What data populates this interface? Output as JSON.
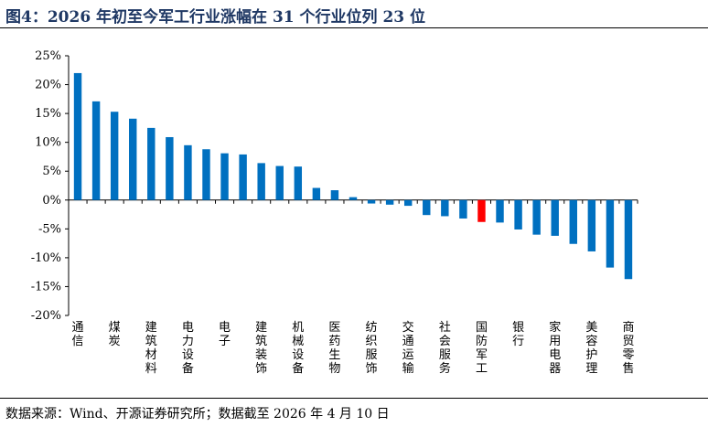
{
  "title": "图4：2026 年初至今军工行业涨幅在 31 个行业位列 23 位",
  "source": "数据来源：Wind、开源证券研究所；数据截至 2026 年 4 月 10 日",
  "colors": {
    "bar": "#0070c0",
    "highlight": "#ff0000",
    "title": "#1f3864"
  },
  "chart_data": {
    "type": "bar",
    "ylim": [
      -20,
      25
    ],
    "yticks": [
      25,
      20,
      15,
      10,
      5,
      0,
      -5,
      -10,
      -15,
      -20
    ],
    "ytick_labels": [
      "25%",
      "20%",
      "15%",
      "10%",
      "5%",
      "0%",
      "-5%",
      "-10%",
      "-15%",
      "-20%"
    ],
    "categories": [
      "通信",
      "",
      "煤炭",
      "",
      "建筑材料",
      "",
      "电力设备",
      "",
      "电子",
      "",
      "建筑装饰",
      "",
      "机械设备",
      "",
      "医药生物",
      "",
      "纺织服饰",
      "",
      "交通运输",
      "",
      "社会服务",
      "",
      "国防军工",
      "",
      "银行",
      "",
      "家用电器",
      "",
      "美容护理",
      "",
      "商贸零售"
    ],
    "values": [
      22.0,
      17.1,
      15.3,
      14.1,
      12.5,
      10.9,
      9.5,
      8.8,
      8.1,
      7.9,
      6.4,
      5.9,
      5.8,
      2.1,
      1.7,
      0.5,
      -0.6,
      -0.8,
      -1.0,
      -2.6,
      -2.8,
      -3.2,
      -3.8,
      -3.9,
      -5.1,
      -6.0,
      -6.2,
      -7.6,
      -8.9,
      -11.7,
      -13.7
    ],
    "highlight_category": "国防军工"
  }
}
